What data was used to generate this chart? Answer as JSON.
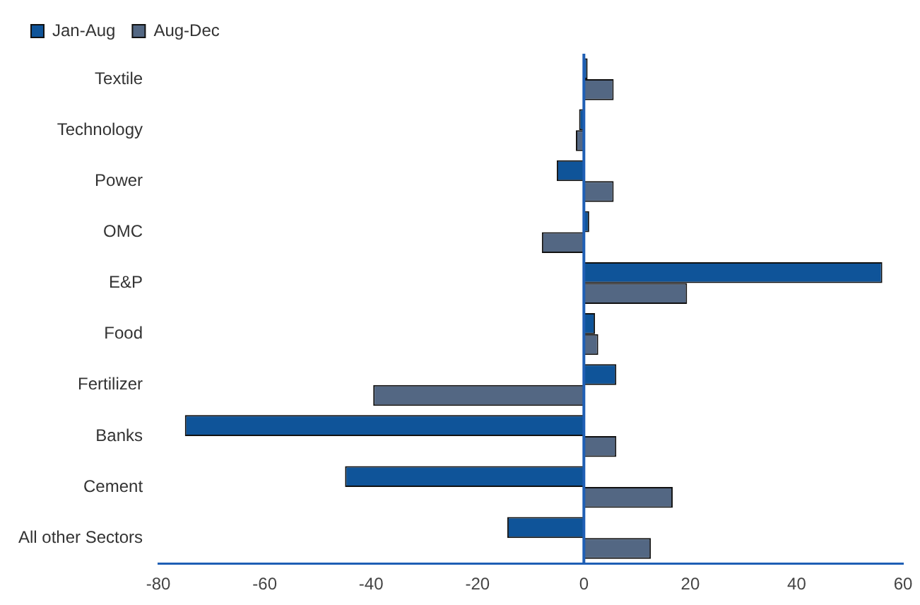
{
  "chart_data": {
    "type": "bar",
    "orientation": "horizontal",
    "categories": [
      "Textile",
      "Technology",
      "Power",
      "OMC",
      "E&P",
      "Food",
      "Fertilizer",
      "Banks",
      "Cement",
      "All other Sectors"
    ],
    "series": [
      {
        "name": "Jan-Aug",
        "color": "#0f5499",
        "values": [
          0.7,
          -0.9,
          -5.1,
          1.0,
          56.1,
          2.1,
          6.1,
          -75,
          -44.9,
          -14.4
        ]
      },
      {
        "name": "Aug-Dec",
        "color": "#536783",
        "values": [
          5.6,
          -1.5,
          5.6,
          -7.9,
          19.4,
          2.7,
          -39.6,
          6.1,
          16.7,
          12.6
        ]
      }
    ],
    "ref_lines": [
      {
        "axis": "x",
        "value": 0,
        "color": "#1f5fb5"
      }
    ],
    "xlim": [
      -80,
      60
    ],
    "xticks": [
      -80,
      -60,
      -40,
      -20,
      0,
      20,
      40,
      60
    ],
    "grid": false,
    "legend": "top left"
  }
}
